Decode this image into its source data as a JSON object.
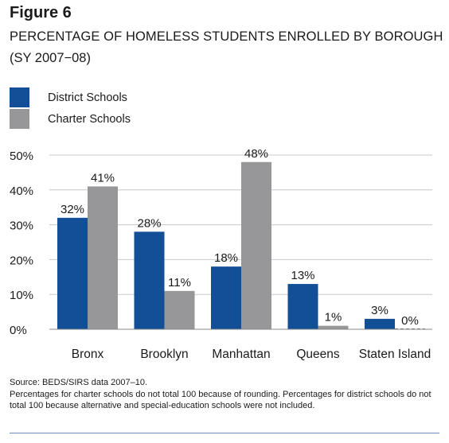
{
  "figure_label": "Figure 6",
  "chart_data": {
    "type": "bar",
    "title": "PERCENTAGE OF HOMELESS STUDENTS ENROLLED BY BOROUGH",
    "subtitle": "(SY 2007−08)",
    "categories": [
      "Bronx",
      "Brooklyn",
      "Manhattan",
      "Queens",
      "Staten Island"
    ],
    "series": [
      {
        "name": "District Schools",
        "color": "#124f97",
        "values": [
          32,
          28,
          18,
          13,
          3
        ],
        "labels": [
          "32%",
          "28%",
          "18%",
          "13%",
          "3%"
        ]
      },
      {
        "name": "Charter Schools",
        "color": "#979799",
        "values": [
          41,
          11,
          48,
          1,
          0
        ],
        "labels": [
          "41%",
          "11%",
          "48%",
          "1%",
          "0%"
        ]
      }
    ],
    "yticks": [
      0,
      10,
      20,
      30,
      40,
      50
    ],
    "ytick_labels": [
      "0%",
      "10%",
      "20%",
      "30%",
      "40%",
      "50%"
    ],
    "ylim": [
      0,
      50
    ],
    "grid": true,
    "legend_position": "top-left"
  },
  "footnotes": {
    "source": "Source: BEDS/SIRS data 2007–10.",
    "note": "Percentages for charter schools do not total 100 because of rounding. Percentages for district schools do not total 100 because alternative and special-education schools were not included."
  }
}
